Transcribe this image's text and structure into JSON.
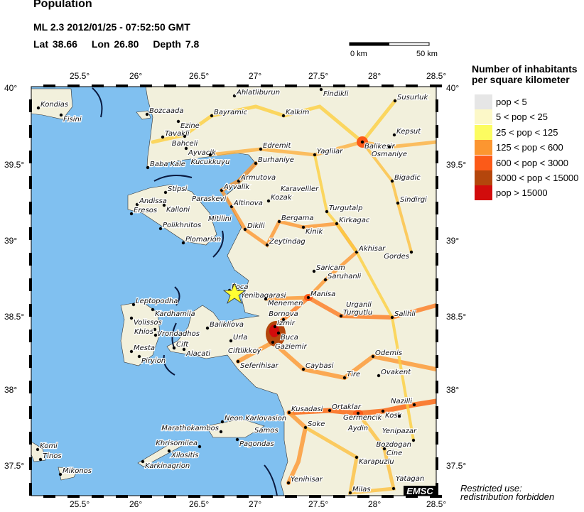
{
  "header": {
    "title": "Population",
    "event": "ML 2.3  2012/01/25 - 07:52:50 GMT",
    "lat": "Lat 38.66",
    "lon": "Lon  26.80",
    "depth": "Depth  7.8"
  },
  "map": {
    "lon_ticks": [
      "25.5°",
      "26°",
      "26.5°",
      "27°",
      "27.5°",
      "28°",
      "28.5°"
    ],
    "lat_ticks": [
      "40°",
      "39.5°",
      "39°",
      "38.5°",
      "38°",
      "37.5°"
    ],
    "scale_bar": {
      "start": "0 km",
      "end": "50 km"
    },
    "epicenter_marker": "star-icon",
    "colors": {
      "sea": "#80c0f0",
      "epicenter": "#ffff33"
    },
    "cities": [
      "Kondias",
      "Fisini",
      "Bozcaada",
      "Ezine",
      "Bayramic",
      "Tavakli",
      "Bahceli",
      "Ayvacik",
      "Kucukkuyu",
      "Baba Kale",
      "Stipsi",
      "Andissa",
      "Kalloni",
      "Paraskevi",
      "Eresos",
      "Polikhnitos",
      "Mitilini",
      "Plomarion",
      "Ahlatliburun",
      "Findikli",
      "Susurluk",
      "Kalkim",
      "Kepsut",
      "Balikesir",
      "Osmaniye",
      "Edremit",
      "Yaglilar",
      "Burhaniye",
      "Armutova",
      "Ayvalik",
      "Karaveliler",
      "Kozak",
      "Altinova",
      "Bigadic",
      "Sindirgi",
      "Turgutalp",
      "Bergama",
      "Kinik",
      "Kirkagac",
      "Dikili",
      "Zeytindag",
      "Akhisar",
      "Gordes",
      "Saricam",
      "Saruhanli",
      "Foca",
      "Yenibagarasi",
      "Menemen",
      "Manisa",
      "Turgutlu",
      "Urganli",
      "Salihli",
      "Leptopodha",
      "Kardhamila",
      "Volissos",
      "Vrondadhos",
      "Khios",
      "Balikliova",
      "Urla",
      "Ciftlikkoy",
      "Izmir",
      "Bornova",
      "Buca",
      "Gaziemir",
      "Mesta",
      "Piryion",
      "Cift",
      "Alacati",
      "Seferihisar",
      "Caybasi",
      "Odemis",
      "Tire",
      "Ovakent",
      "Nazilli",
      "Kusadasi",
      "Ortaklar",
      "Germencik",
      "Aydin",
      "Kosk",
      "Yenipazar",
      "Soke",
      "Bozdogan",
      "Cine",
      "Karapuzlu",
      "Yenihisar",
      "Milas",
      "Yatagan",
      "Neon Karlovasion",
      "Samos",
      "Marathokambos",
      "Pagondas",
      "Khrisomilea",
      "Xilositis",
      "Karkinagrion",
      "Komi",
      "Tinos",
      "Mikonos"
    ],
    "watermark": "EMSC"
  },
  "legend": {
    "title_line1": "Number of inhabitants",
    "title_line2": "per square kilometer",
    "items": [
      {
        "label": "pop < 5",
        "color": "#e6e6e6"
      },
      {
        "label": "5 < pop < 25",
        "color": "#fcf8c8"
      },
      {
        "label": "25 < pop < 125",
        "color": "#fcfc60"
      },
      {
        "label": "125 < pop < 600",
        "color": "#fc9630"
      },
      {
        "label": "600 < pop < 3000",
        "color": "#fc5a18"
      },
      {
        "label": "3000 < pop < 15000",
        "color": "#b4460c"
      },
      {
        "label": "pop > 15000",
        "color": "#d20c0c"
      }
    ]
  },
  "footer": {
    "restricted_line1": "Restricted use:",
    "restricted_line2": "redistribution forbidden"
  }
}
